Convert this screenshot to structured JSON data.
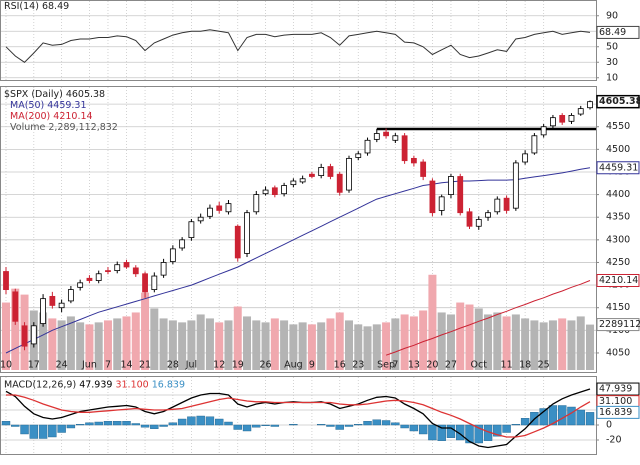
{
  "chart_data": [
    {
      "type": "line",
      "title": "RSI(14)",
      "color": "#333333",
      "ylim": [
        10,
        100
      ],
      "yticks": [
        90,
        70,
        50,
        30,
        10
      ],
      "grid": true,
      "values": [
        50,
        38,
        30,
        42,
        55,
        52,
        53,
        58,
        60,
        60,
        62,
        62,
        64,
        63,
        58,
        45,
        55,
        60,
        65,
        68,
        70,
        70,
        72,
        70,
        68,
        45,
        62,
        66,
        66,
        63,
        65,
        66,
        66,
        66,
        68,
        62,
        52,
        64,
        66,
        68,
        70,
        68,
        66,
        56,
        55,
        50,
        40,
        46,
        52,
        40,
        36,
        38,
        42,
        46,
        44,
        60,
        62,
        66,
        68,
        70,
        66,
        68,
        70,
        68.49
      ]
    },
    {
      "type": "candlestick",
      "title": "$SPX (Daily)",
      "up_color": "#ffffff",
      "down_color": "#cc2233",
      "ylim": [
        4030,
        4640
      ],
      "yticks": [
        4600,
        4550,
        4500,
        4450,
        4400,
        4350,
        4300,
        4250,
        4200,
        4150,
        4100,
        4050
      ],
      "grid": true,
      "resistance": 4545,
      "categories": [
        "10",
        null,
        null,
        "17",
        null,
        null,
        "24",
        null,
        null,
        "Jun",
        null,
        "7",
        null,
        "14",
        null,
        "21",
        null,
        null,
        "28",
        null,
        "Jul",
        null,
        null,
        "12",
        null,
        "19",
        null,
        null,
        "26",
        null,
        null,
        "Aug",
        null,
        "9",
        null,
        null,
        "16",
        null,
        "23",
        null,
        null,
        "Sep",
        "7",
        null,
        "13",
        null,
        "20",
        null,
        "27",
        null,
        null,
        "Oct",
        null,
        null,
        "11",
        null,
        "18",
        null,
        "25",
        null,
        null,
        null,
        null,
        null
      ],
      "open": [
        4230,
        4185,
        4110,
        4070,
        4115,
        4175,
        4150,
        4165,
        4195,
        4215,
        4210,
        4232,
        4232,
        4250,
        4238,
        4225,
        4190,
        4222,
        4252,
        4282,
        4305,
        4342,
        4352,
        4375,
        4362,
        4330,
        4270,
        4362,
        4402,
        4415,
        4402,
        4422,
        4428,
        4445,
        4442,
        4462,
        4445,
        4410,
        4482,
        4492,
        4522,
        4538,
        4520,
        4530,
        4480,
        4472,
        4430,
        4365,
        4400,
        4440,
        4362,
        4330,
        4350,
        4362,
        4392,
        4370,
        4472,
        4492,
        4532,
        4552,
        4575,
        4562,
        4578,
        4592
      ],
      "high": [
        4240,
        4192,
        4118,
        4118,
        4180,
        4185,
        4168,
        4198,
        4212,
        4222,
        4232,
        4240,
        4252,
        4256,
        4244,
        4230,
        4228,
        4258,
        4288,
        4306,
        4346,
        4358,
        4378,
        4384,
        4388,
        4334,
        4366,
        4408,
        4418,
        4420,
        4426,
        4436,
        4442,
        4450,
        4468,
        4468,
        4450,
        4486,
        4496,
        4526,
        4545,
        4546,
        4536,
        4536,
        4486,
        4478,
        4436,
        4400,
        4446,
        4446,
        4370,
        4352,
        4366,
        4396,
        4398,
        4476,
        4498,
        4536,
        4556,
        4576,
        4580,
        4580,
        4596,
        4608
      ],
      "low": [
        4180,
        4112,
        4056,
        4062,
        4108,
        4148,
        4140,
        4160,
        4188,
        4204,
        4204,
        4224,
        4226,
        4236,
        4218,
        4172,
        4184,
        4216,
        4246,
        4276,
        4298,
        4336,
        4346,
        4358,
        4356,
        4252,
        4262,
        4356,
        4398,
        4394,
        4396,
        4416,
        4424,
        4436,
        4436,
        4434,
        4398,
        4404,
        4476,
        4486,
        4516,
        4524,
        4514,
        4468,
        4462,
        4432,
        4352,
        4354,
        4392,
        4354,
        4324,
        4322,
        4342,
        4356,
        4358,
        4364,
        4466,
        4488,
        4526,
        4546,
        4554,
        4556,
        4574,
        4588
      ],
      "close": [
        4190,
        4120,
        4065,
        4110,
        4170,
        4155,
        4160,
        4190,
        4205,
        4210,
        4225,
        4230,
        4245,
        4240,
        4225,
        4185,
        4220,
        4250,
        4280,
        4300,
        4340,
        4350,
        4370,
        4365,
        4380,
        4260,
        4360,
        4400,
        4410,
        4400,
        4420,
        4430,
        4435,
        4440,
        4460,
        4440,
        4405,
        4480,
        4490,
        4520,
        4535,
        4530,
        4530,
        4475,
        4470,
        4440,
        4360,
        4395,
        4440,
        4360,
        4330,
        4345,
        4360,
        4390,
        4365,
        4470,
        4490,
        4530,
        4550,
        4570,
        4560,
        4575,
        4590,
        4605.38
      ],
      "series": [
        {
          "name": "MA(50)",
          "color": "#333399",
          "values": [
            4050,
            4060,
            4070,
            4080,
            4090,
            4100,
            4108,
            4116,
            4124,
            4132,
            4140,
            4146,
            4152,
            4158,
            4164,
            4170,
            4176,
            4182,
            4188,
            4194,
            4200,
            4208,
            4216,
            4224,
            4232,
            4240,
            4250,
            4260,
            4270,
            4280,
            4290,
            4300,
            4310,
            4320,
            4330,
            4340,
            4350,
            4360,
            4370,
            4380,
            4390,
            4396,
            4402,
            4408,
            4414,
            4420,
            4423,
            4426,
            4428,
            4430,
            4430,
            4431,
            4432,
            4432,
            4432,
            4433,
            4436,
            4439,
            4442,
            4445,
            4448,
            4452,
            4456,
            4459.31
          ]
        },
        {
          "name": "MA(200)",
          "color": "#cc2233",
          "values": [
            null,
            null,
            null,
            null,
            null,
            null,
            null,
            null,
            null,
            null,
            null,
            null,
            null,
            null,
            null,
            null,
            null,
            null,
            null,
            null,
            null,
            null,
            null,
            null,
            null,
            null,
            null,
            null,
            null,
            null,
            null,
            null,
            null,
            null,
            null,
            null,
            null,
            null,
            null,
            null,
            null,
            4045,
            4052,
            4060,
            4067,
            4075,
            4082,
            4090,
            4097,
            4105,
            4112,
            4120,
            4127,
            4135,
            4142,
            4150,
            4157,
            4165,
            4172,
            4180,
            4187,
            4195,
            4202,
            4210.14
          ]
        }
      ],
      "volume": {
        "name": "Volume 2,289,112,832",
        "color": "#b4b4b4",
        "down_color": "#f0a8ae",
        "values": [
          3400000,
          4100000,
          3800000,
          3000000,
          2900000,
          2600000,
          2500000,
          2700000,
          2400000,
          2300000,
          2400000,
          2500000,
          2600000,
          2700000,
          2900000,
          3900000,
          3100000,
          2600000,
          2500000,
          2400000,
          2500000,
          2800000,
          2600000,
          2400000,
          2500000,
          3200000,
          2700000,
          2500000,
          2400000,
          2600000,
          2500000,
          2300000,
          2400000,
          2300000,
          2400000,
          2600000,
          2900000,
          2500000,
          2300000,
          2200000,
          2300000,
          2400000,
          2600000,
          2800000,
          2700000,
          3000000,
          4800000,
          2900000,
          2800000,
          3400000,
          3300000,
          3100000,
          2800000,
          2900000,
          2700000,
          2800000,
          2600000,
          2500000,
          2400000,
          2500000,
          2600000,
          2500000,
          2700000,
          2289112
        ]
      }
    },
    {
      "type": "line",
      "title": "MACD(12,26,9)",
      "ylim": [
        -36,
        62
      ],
      "yticks": [
        40,
        20,
        0,
        -20
      ],
      "grid": true,
      "series": [
        {
          "color": "#000000",
          "values": [
            45,
            38,
            25,
            15,
            10,
            8,
            10,
            14,
            18,
            20,
            22,
            24,
            25,
            26,
            24,
            18,
            15,
            18,
            24,
            30,
            36,
            40,
            42,
            42,
            40,
            28,
            24,
            28,
            30,
            28,
            30,
            31,
            30,
            30,
            31,
            28,
            22,
            25,
            28,
            33,
            37,
            38,
            36,
            28,
            22,
            15,
            2,
            -4,
            -4,
            -12,
            -22,
            -28,
            -30,
            -28,
            -26,
            -15,
            -5,
            8,
            18,
            28,
            35,
            40,
            44,
            47.939
          ]
        },
        {
          "color": "#dd3333",
          "value_labels": {
            "63": "31.100"
          },
          "values": [
            40,
            40,
            37,
            33,
            28,
            24,
            20,
            18,
            17,
            17,
            18,
            19,
            20,
            21,
            22,
            21,
            20,
            20,
            21,
            22,
            25,
            28,
            31,
            34,
            36,
            34,
            32,
            31,
            31,
            30,
            30,
            30,
            30,
            30,
            30,
            30,
            28,
            27,
            27,
            28,
            30,
            32,
            33,
            32,
            30,
            27,
            22,
            17,
            13,
            8,
            2,
            -4,
            -9,
            -13,
            -16,
            -16,
            -14,
            -9,
            -4,
            2,
            9,
            16,
            24,
            31.1
          ]
        },
        {
          "type": "bar",
          "color": "#3a8fc4",
          "values": [
            5,
            -2,
            -12,
            -18,
            -18,
            -16,
            -10,
            -4,
            1,
            3,
            4,
            5,
            5,
            5,
            2,
            -3,
            -5,
            -2,
            3,
            8,
            11,
            12,
            11,
            8,
            4,
            -6,
            -8,
            -3,
            -1,
            -2,
            0,
            1,
            0,
            0,
            1,
            -2,
            -6,
            -2,
            1,
            5,
            7,
            6,
            3,
            -4,
            -8,
            -12,
            -20,
            -21,
            -17,
            -20,
            -24,
            -24,
            -21,
            -15,
            -10,
            1,
            9,
            17,
            22,
            26,
            26,
            24,
            20,
            16.839
          ]
        }
      ]
    }
  ]
}
